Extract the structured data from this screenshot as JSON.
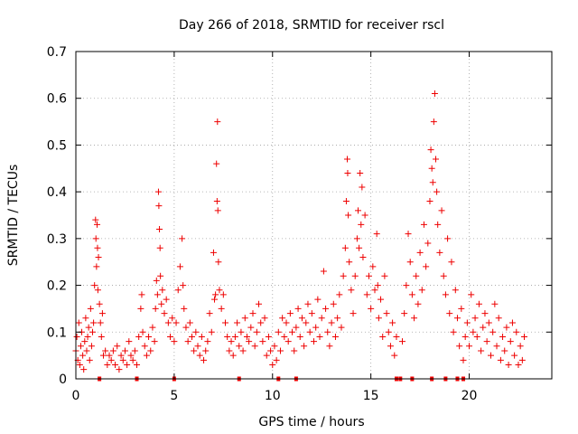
{
  "chart_data": {
    "type": "scatter",
    "title": "Day 266 of 2018, SRMTID for receiver rscl",
    "xlabel": "GPS time / hours",
    "ylabel": "SRMTID / TECUs",
    "xlim": [
      0,
      24.2
    ],
    "ylim": [
      0,
      0.7
    ],
    "xticks": [
      0,
      5,
      10,
      15,
      20
    ],
    "yticks": [
      0,
      0.1,
      0.2,
      0.3,
      0.4,
      0.5,
      0.6,
      0.7
    ],
    "grid": true,
    "marker": "+",
    "color": "#ee0000",
    "series": [
      {
        "name": "SRMTID",
        "points": [
          [
            0.0,
            0.06
          ],
          [
            0.05,
            0.09
          ],
          [
            0.1,
            0.04
          ],
          [
            0.15,
            0.12
          ],
          [
            0.2,
            0.03
          ],
          [
            0.25,
            0.07
          ],
          [
            0.3,
            0.1
          ],
          [
            0.35,
            0.05
          ],
          [
            0.4,
            0.02
          ],
          [
            0.45,
            0.08
          ],
          [
            0.5,
            0.13
          ],
          [
            0.55,
            0.06
          ],
          [
            0.6,
            0.09
          ],
          [
            0.65,
            0.11
          ],
          [
            0.7,
            0.04
          ],
          [
            0.75,
            0.15
          ],
          [
            0.8,
            0.07
          ],
          [
            0.85,
            0.1
          ],
          [
            0.9,
            0.12
          ],
          [
            0.95,
            0.2
          ],
          [
            1.0,
            0.34
          ],
          [
            1.02,
            0.3
          ],
          [
            1.05,
            0.24
          ],
          [
            1.08,
            0.33
          ],
          [
            1.1,
            0.28
          ],
          [
            1.12,
            0.19
          ],
          [
            1.15,
            0.26
          ],
          [
            1.2,
            0.16
          ],
          [
            1.25,
            0.12
          ],
          [
            1.3,
            0.09
          ],
          [
            1.35,
            0.14
          ],
          [
            1.4,
            0.05
          ],
          [
            1.5,
            0.06
          ],
          [
            1.6,
            0.03
          ],
          [
            1.7,
            0.05
          ],
          [
            1.8,
            0.04
          ],
          [
            1.9,
            0.06
          ],
          [
            2.0,
            0.03
          ],
          [
            2.1,
            0.07
          ],
          [
            2.2,
            0.02
          ],
          [
            2.3,
            0.05
          ],
          [
            2.4,
            0.04
          ],
          [
            2.5,
            0.06
          ],
          [
            2.6,
            0.03
          ],
          [
            2.7,
            0.08
          ],
          [
            2.8,
            0.05
          ],
          [
            2.9,
            0.04
          ],
          [
            3.0,
            0.06
          ],
          [
            3.1,
            0.03
          ],
          [
            3.2,
            0.09
          ],
          [
            3.3,
            0.15
          ],
          [
            3.35,
            0.18
          ],
          [
            3.4,
            0.1
          ],
          [
            3.5,
            0.07
          ],
          [
            3.6,
            0.05
          ],
          [
            3.7,
            0.09
          ],
          [
            3.8,
            0.06
          ],
          [
            3.9,
            0.11
          ],
          [
            4.0,
            0.08
          ],
          [
            4.05,
            0.15
          ],
          [
            4.1,
            0.21
          ],
          [
            4.15,
            0.18
          ],
          [
            4.2,
            0.4
          ],
          [
            4.22,
            0.37
          ],
          [
            4.25,
            0.32
          ],
          [
            4.28,
            0.28
          ],
          [
            4.3,
            0.22
          ],
          [
            4.35,
            0.16
          ],
          [
            4.4,
            0.19
          ],
          [
            4.5,
            0.14
          ],
          [
            4.6,
            0.17
          ],
          [
            4.7,
            0.12
          ],
          [
            4.8,
            0.09
          ],
          [
            4.9,
            0.13
          ],
          [
            5.0,
            0.08
          ],
          [
            5.1,
            0.12
          ],
          [
            5.2,
            0.19
          ],
          [
            5.3,
            0.24
          ],
          [
            5.4,
            0.3
          ],
          [
            5.45,
            0.2
          ],
          [
            5.5,
            0.15
          ],
          [
            5.6,
            0.11
          ],
          [
            5.7,
            0.08
          ],
          [
            5.8,
            0.12
          ],
          [
            5.9,
            0.09
          ],
          [
            6.0,
            0.06
          ],
          [
            6.1,
            0.1
          ],
          [
            6.2,
            0.07
          ],
          [
            6.3,
            0.05
          ],
          [
            6.4,
            0.09
          ],
          [
            6.5,
            0.04
          ],
          [
            6.6,
            0.06
          ],
          [
            6.7,
            0.08
          ],
          [
            6.8,
            0.14
          ],
          [
            6.9,
            0.1
          ],
          [
            7.0,
            0.27
          ],
          [
            7.05,
            0.17
          ],
          [
            7.1,
            0.18
          ],
          [
            7.15,
            0.46
          ],
          [
            7.18,
            0.38
          ],
          [
            7.2,
            0.55
          ],
          [
            7.22,
            0.36
          ],
          [
            7.25,
            0.25
          ],
          [
            7.3,
            0.19
          ],
          [
            7.4,
            0.15
          ],
          [
            7.5,
            0.18
          ],
          [
            7.6,
            0.12
          ],
          [
            7.7,
            0.09
          ],
          [
            7.8,
            0.06
          ],
          [
            7.9,
            0.08
          ],
          [
            8.0,
            0.05
          ],
          [
            8.1,
            0.09
          ],
          [
            8.2,
            0.12
          ],
          [
            8.3,
            0.07
          ],
          [
            8.4,
            0.1
          ],
          [
            8.5,
            0.06
          ],
          [
            8.6,
            0.13
          ],
          [
            8.7,
            0.09
          ],
          [
            8.8,
            0.08
          ],
          [
            8.9,
            0.11
          ],
          [
            9.0,
            0.14
          ],
          [
            9.1,
            0.07
          ],
          [
            9.2,
            0.1
          ],
          [
            9.3,
            0.16
          ],
          [
            9.4,
            0.12
          ],
          [
            9.5,
            0.08
          ],
          [
            9.6,
            0.13
          ],
          [
            9.7,
            0.05
          ],
          [
            9.8,
            0.09
          ],
          [
            9.9,
            0.06
          ],
          [
            10.0,
            0.03
          ],
          [
            10.1,
            0.07
          ],
          [
            10.2,
            0.04
          ],
          [
            10.3,
            0.1
          ],
          [
            10.4,
            0.06
          ],
          [
            10.5,
            0.13
          ],
          [
            10.6,
            0.09
          ],
          [
            10.7,
            0.12
          ],
          [
            10.8,
            0.08
          ],
          [
            10.9,
            0.14
          ],
          [
            11.0,
            0.1
          ],
          [
            11.1,
            0.06
          ],
          [
            11.2,
            0.11
          ],
          [
            11.3,
            0.15
          ],
          [
            11.4,
            0.09
          ],
          [
            11.5,
            0.13
          ],
          [
            11.6,
            0.07
          ],
          [
            11.7,
            0.12
          ],
          [
            11.8,
            0.16
          ],
          [
            11.9,
            0.1
          ],
          [
            12.0,
            0.14
          ],
          [
            12.1,
            0.08
          ],
          [
            12.2,
            0.11
          ],
          [
            12.3,
            0.17
          ],
          [
            12.4,
            0.09
          ],
          [
            12.5,
            0.13
          ],
          [
            12.6,
            0.23
          ],
          [
            12.7,
            0.15
          ],
          [
            12.8,
            0.1
          ],
          [
            12.9,
            0.07
          ],
          [
            13.0,
            0.12
          ],
          [
            13.1,
            0.16
          ],
          [
            13.2,
            0.09
          ],
          [
            13.3,
            0.13
          ],
          [
            13.4,
            0.18
          ],
          [
            13.5,
            0.11
          ],
          [
            13.6,
            0.22
          ],
          [
            13.7,
            0.28
          ],
          [
            13.75,
            0.38
          ],
          [
            13.8,
            0.47
          ],
          [
            13.82,
            0.44
          ],
          [
            13.85,
            0.35
          ],
          [
            13.9,
            0.25
          ],
          [
            14.0,
            0.19
          ],
          [
            14.1,
            0.14
          ],
          [
            14.2,
            0.22
          ],
          [
            14.3,
            0.3
          ],
          [
            14.35,
            0.36
          ],
          [
            14.4,
            0.28
          ],
          [
            14.45,
            0.44
          ],
          [
            14.5,
            0.33
          ],
          [
            14.55,
            0.41
          ],
          [
            14.6,
            0.26
          ],
          [
            14.7,
            0.35
          ],
          [
            14.8,
            0.18
          ],
          [
            14.9,
            0.22
          ],
          [
            15.0,
            0.15
          ],
          [
            15.1,
            0.24
          ],
          [
            15.2,
            0.19
          ],
          [
            15.3,
            0.31
          ],
          [
            15.35,
            0.2
          ],
          [
            15.4,
            0.13
          ],
          [
            15.5,
            0.17
          ],
          [
            15.6,
            0.09
          ],
          [
            15.7,
            0.22
          ],
          [
            15.8,
            0.14
          ],
          [
            15.9,
            0.1
          ],
          [
            16.0,
            0.07
          ],
          [
            16.1,
            0.12
          ],
          [
            16.2,
            0.05
          ],
          [
            16.3,
            0.09
          ],
          [
            16.6,
            0.08
          ],
          [
            16.7,
            0.14
          ],
          [
            16.8,
            0.2
          ],
          [
            16.9,
            0.31
          ],
          [
            17.0,
            0.25
          ],
          [
            17.1,
            0.18
          ],
          [
            17.2,
            0.13
          ],
          [
            17.3,
            0.22
          ],
          [
            17.4,
            0.16
          ],
          [
            17.5,
            0.27
          ],
          [
            17.6,
            0.19
          ],
          [
            17.7,
            0.33
          ],
          [
            17.8,
            0.24
          ],
          [
            17.9,
            0.29
          ],
          [
            18.0,
            0.38
          ],
          [
            18.05,
            0.49
          ],
          [
            18.1,
            0.45
          ],
          [
            18.15,
            0.42
          ],
          [
            18.2,
            0.55
          ],
          [
            18.25,
            0.61
          ],
          [
            18.3,
            0.47
          ],
          [
            18.35,
            0.4
          ],
          [
            18.4,
            0.33
          ],
          [
            18.5,
            0.27
          ],
          [
            18.6,
            0.36
          ],
          [
            18.7,
            0.22
          ],
          [
            18.8,
            0.18
          ],
          [
            18.9,
            0.3
          ],
          [
            19.0,
            0.14
          ],
          [
            19.1,
            0.25
          ],
          [
            19.2,
            0.1
          ],
          [
            19.3,
            0.19
          ],
          [
            19.4,
            0.13
          ],
          [
            19.5,
            0.07
          ],
          [
            19.6,
            0.15
          ],
          [
            19.7,
            0.04
          ],
          [
            19.8,
            0.09
          ],
          [
            19.9,
            0.12
          ],
          [
            20.0,
            0.07
          ],
          [
            20.1,
            0.18
          ],
          [
            20.2,
            0.1
          ],
          [
            20.3,
            0.13
          ],
          [
            20.4,
            0.09
          ],
          [
            20.5,
            0.16
          ],
          [
            20.6,
            0.06
          ],
          [
            20.7,
            0.11
          ],
          [
            20.8,
            0.14
          ],
          [
            20.9,
            0.08
          ],
          [
            21.0,
            0.12
          ],
          [
            21.1,
            0.05
          ],
          [
            21.2,
            0.1
          ],
          [
            21.3,
            0.16
          ],
          [
            21.4,
            0.07
          ],
          [
            21.5,
            0.13
          ],
          [
            21.6,
            0.04
          ],
          [
            21.7,
            0.09
          ],
          [
            21.8,
            0.06
          ],
          [
            21.9,
            0.11
          ],
          [
            22.0,
            0.03
          ],
          [
            22.1,
            0.08
          ],
          [
            22.2,
            0.12
          ],
          [
            22.3,
            0.05
          ],
          [
            22.4,
            0.1
          ],
          [
            22.5,
            0.03
          ],
          [
            22.6,
            0.07
          ],
          [
            22.7,
            0.04
          ],
          [
            22.8,
            0.09
          ]
        ]
      }
    ],
    "gap_markers_x": [
      1.2,
      3.1,
      5.0,
      8.3,
      10.3,
      11.2,
      16.3,
      16.5,
      17.1,
      18.1,
      18.8,
      19.4,
      19.7
    ]
  }
}
